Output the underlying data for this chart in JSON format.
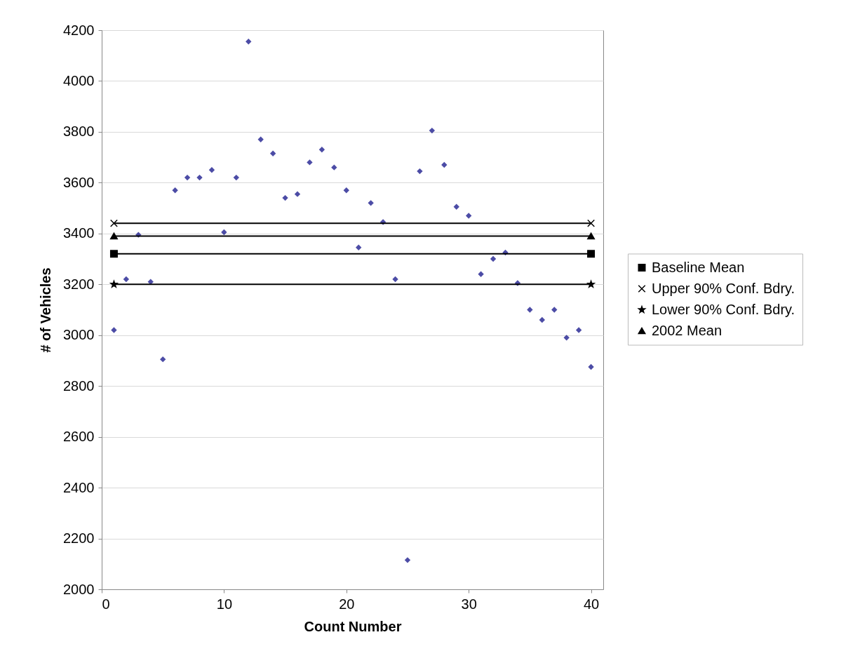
{
  "chart_data": {
    "type": "scatter",
    "xlabel": "Count Number",
    "ylabel": "# of Vehicles",
    "xlim": [
      0,
      41
    ],
    "xticks": [
      0,
      10,
      20,
      30,
      40
    ],
    "ylim": [
      2000,
      4200
    ],
    "yticks": [
      2000,
      2200,
      2400,
      2600,
      2800,
      3000,
      3200,
      3400,
      3600,
      3800,
      4000,
      4200
    ],
    "grid": "y",
    "legend": "right",
    "series": [
      {
        "type": "scatter",
        "color": "#000080",
        "marker": "diamond",
        "x": [
          1,
          2,
          3,
          4,
          5,
          6,
          7,
          8,
          9,
          10,
          11,
          12,
          13,
          14,
          15,
          16,
          17,
          18,
          19,
          20,
          21,
          22,
          23,
          24,
          25,
          26,
          27,
          28,
          29,
          30,
          31,
          32,
          33,
          34,
          35,
          36,
          37,
          38,
          39,
          40
        ],
        "values": [
          3020,
          3220,
          3395,
          3210,
          2905,
          3570,
          3620,
          3620,
          3650,
          3405,
          3620,
          4155,
          3770,
          3715,
          3540,
          3555,
          3680,
          3730,
          3660,
          3570,
          3345,
          3520,
          3445,
          3220,
          2115,
          3645,
          3805,
          3670,
          3505,
          3470,
          3240,
          3300,
          3325,
          3205,
          3100,
          3060,
          3100,
          2990,
          3020,
          2875
        ]
      },
      {
        "type": "line",
        "name": "Baseline Mean",
        "color": "#000000",
        "marker": "square",
        "x": [
          1,
          40
        ],
        "values": [
          3320,
          3320
        ]
      },
      {
        "type": "line",
        "name": "Upper 90% Conf. Bdry.",
        "color": "#000000",
        "marker": "cross",
        "x": [
          1,
          40
        ],
        "values": [
          3440,
          3440
        ]
      },
      {
        "type": "line",
        "name": "Lower 90% Conf. Bdry.",
        "color": "#000000",
        "marker": "star",
        "x": [
          1,
          40
        ],
        "values": [
          3200,
          3200
        ]
      },
      {
        "type": "line",
        "name": "2002 Mean",
        "color": "#000000",
        "marker": "triangle",
        "x": [
          1,
          40
        ],
        "values": [
          3390,
          3390
        ]
      }
    ]
  }
}
